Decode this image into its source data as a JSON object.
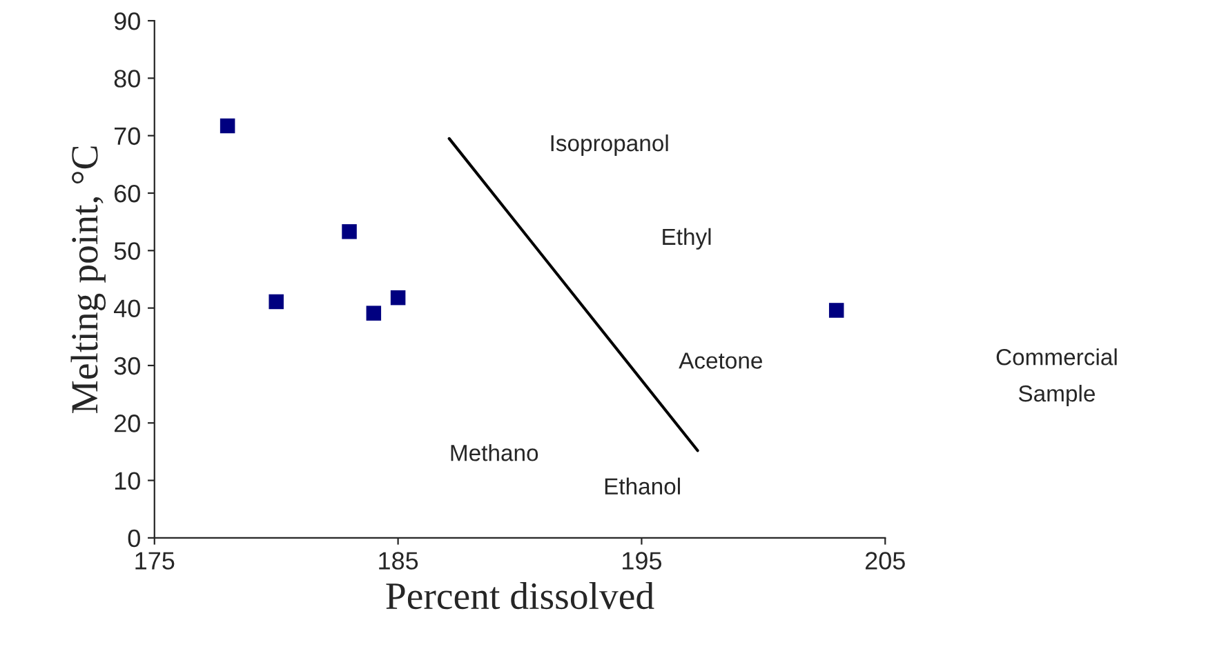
{
  "chart_data": {
    "type": "scatter",
    "xlabel": "Percent dissolved",
    "ylabel": "Melting point, °C",
    "xlim": [
      175,
      205
    ],
    "xticks": [
      175,
      185,
      195,
      205
    ],
    "ylim": [
      0,
      90
    ],
    "yticks": [
      0,
      10,
      20,
      30,
      40,
      50,
      60,
      70,
      80,
      90
    ],
    "grid": false,
    "legend": false,
    "marker": "square",
    "series": [
      {
        "color": "#000080",
        "x": [
          178,
          180,
          183,
          184,
          185,
          203
        ],
        "values": [
          71.7,
          41.1,
          53.3,
          39.1,
          41.8,
          39.6
        ]
      },
      {
        "type": "line",
        "color": "#000000",
        "marker": "none",
        "line_style": "solid",
        "x": [
          187.1,
          197.3
        ],
        "values": [
          69.5,
          15.2
        ]
      }
    ],
    "annotations": [
      "Isopropanol",
      "Ethyl",
      "Acetone",
      "Methano",
      "Ethanol",
      "Commercial\nSample"
    ]
  }
}
